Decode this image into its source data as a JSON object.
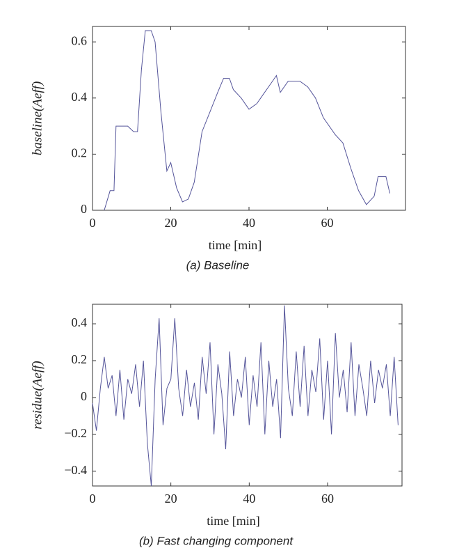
{
  "chart_data": [
    {
      "type": "line",
      "xlabel": "time [min]",
      "ylabel": "baseline(Aeff)",
      "caption": "(a)   Baseline",
      "xlim": [
        0,
        80
      ],
      "ylim": [
        0,
        0.655
      ],
      "xticks": [
        0,
        20,
        40,
        60
      ],
      "yticks": [
        0,
        0.2,
        0.4,
        0.6
      ],
      "x": [
        3,
        4.5,
        5.5,
        6,
        9,
        10.5,
        11.5,
        12.5,
        13.5,
        15,
        16,
        17.5,
        19,
        20,
        21.5,
        23,
        24.5,
        26,
        28,
        30,
        32,
        33.5,
        35,
        36,
        38,
        40,
        42,
        44,
        46,
        47,
        48,
        50,
        53,
        55,
        57,
        59,
        62,
        64,
        66,
        68,
        70,
        72,
        73,
        75,
        76
      ],
      "series": [
        {
          "color": "#55559a",
          "values": [
            0,
            0.07,
            0.07,
            0.3,
            0.3,
            0.28,
            0.28,
            0.5,
            0.64,
            0.64,
            0.6,
            0.35,
            0.14,
            0.17,
            0.08,
            0.03,
            0.04,
            0.1,
            0.28,
            0.35,
            0.42,
            0.47,
            0.47,
            0.43,
            0.4,
            0.36,
            0.38,
            0.42,
            0.46,
            0.48,
            0.42,
            0.46,
            0.46,
            0.44,
            0.4,
            0.33,
            0.27,
            0.24,
            0.15,
            0.07,
            0.02,
            0.05,
            0.12,
            0.12,
            0.06
          ]
        }
      ]
    },
    {
      "type": "line",
      "xlabel": "time [min]",
      "ylabel": "residue(Aeff)",
      "caption": "(b)   Fast changing component",
      "xlim": [
        0,
        79
      ],
      "ylim": [
        -0.48,
        0.506
      ],
      "xticks": [
        0,
        20,
        40,
        60
      ],
      "yticks": [
        {
          "value": -0.4,
          "label": "−0.4"
        },
        {
          "value": -0.2,
          "label": "−0.2"
        },
        0,
        0.2,
        0.4
      ],
      "x": [
        0,
        1,
        2,
        3,
        4,
        5,
        6,
        7,
        8,
        9,
        10,
        11,
        12,
        13,
        14,
        15,
        16,
        17,
        18,
        19,
        20,
        21,
        22,
        23,
        24,
        25,
        26,
        27,
        28,
        29,
        30,
        31,
        32,
        33,
        34,
        35,
        36,
        37,
        38,
        39,
        40,
        41,
        42,
        43,
        44,
        45,
        46,
        47,
        48,
        49,
        50,
        51,
        52,
        53,
        54,
        55,
        56,
        57,
        58,
        59,
        60,
        61,
        62,
        63,
        64,
        65,
        66,
        67,
        68,
        69,
        70,
        71,
        72,
        73,
        74,
        75,
        76,
        77,
        78
      ],
      "series": [
        {
          "color": "#55559a",
          "values": [
            -0.03,
            -0.18,
            0.05,
            0.22,
            0.05,
            0.12,
            -0.1,
            0.15,
            -0.12,
            0.1,
            0.02,
            0.18,
            -0.05,
            0.2,
            -0.25,
            -0.48,
            0.1,
            0.43,
            -0.15,
            0.05,
            0.1,
            0.43,
            0.05,
            -0.1,
            0.15,
            -0.05,
            0.08,
            -0.12,
            0.22,
            0.02,
            0.3,
            -0.2,
            0.18,
            0.02,
            -0.28,
            0.25,
            -0.1,
            0.1,
            0,
            0.22,
            -0.15,
            0.12,
            -0.05,
            0.3,
            -0.2,
            0.2,
            -0.05,
            0.1,
            -0.22,
            0.5,
            0.05,
            -0.1,
            0.25,
            -0.05,
            0.28,
            -0.1,
            0.15,
            0.03,
            0.32,
            -0.12,
            0.2,
            -0.2,
            0.35,
            0,
            0.15,
            -0.08,
            0.3,
            -0.1,
            0.18,
            0.05,
            -0.1,
            0.2,
            -0.03,
            0.15,
            0.05,
            0.18,
            -0.1,
            0.22,
            -0.15
          ]
        }
      ]
    }
  ]
}
